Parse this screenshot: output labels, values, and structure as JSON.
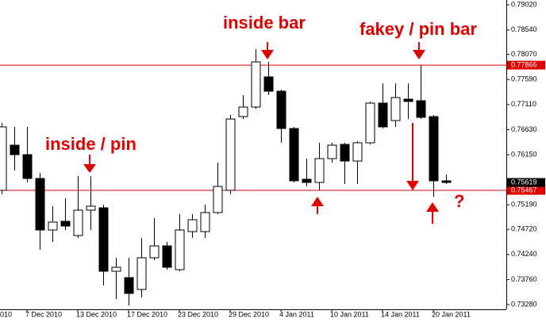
{
  "chart_data": {
    "type": "candlestick",
    "categories": [
      null,
      null,
      "7 Dec 2010",
      null,
      null,
      null,
      "13 Dec 2010",
      null,
      null,
      null,
      "17 Dec 2010",
      null,
      null,
      null,
      "23 Dec 2010",
      null,
      null,
      null,
      "29 Dec 2010",
      null,
      null,
      null,
      "4 Jan 2011",
      null,
      null,
      null,
      "10 Jan 2011",
      null,
      null,
      null,
      "14 Jan 2011",
      null,
      null,
      null,
      "20 Jan 2011",
      null
    ],
    "x_cut_label": "010",
    "open": [
      0.75467,
      0.76333,
      0.76151,
      0.75695,
      0.74708,
      0.74875,
      0.74602,
      0.75088,
      0.75133,
      0.73918,
      0.73796,
      0.73569,
      0.74176,
      0.74404,
      0.73948,
      0.74677,
      0.74677,
      0.75042,
      0.75467,
      0.7688,
      0.77062,
      0.7764,
      0.77366,
      0.76652,
      0.7568,
      0.75619,
      0.76075,
      0.76348,
      0.76029,
      0.76379,
      0.77138,
      0.76804,
      0.77214,
      0.77184,
      0.7688,
      0.7565
    ],
    "high": [
      0.76759,
      0.76683,
      0.76683,
      0.75802,
      0.75164,
      0.75315,
      0.75741,
      0.75741,
      0.75194,
      0.74176,
      0.74176,
      0.74556,
      0.74936,
      0.7448,
      0.75012,
      0.75012,
      0.75194,
      0.75999,
      0.7691,
      0.7729,
      0.78171,
      0.77928,
      0.77396,
      0.76683,
      0.76075,
      0.76379,
      0.76379,
      0.76379,
      0.76409,
      0.77169,
      0.77518,
      0.77518,
      0.77518,
      0.77866,
      0.7691,
      0.75771
    ],
    "low": [
      0.75391,
      0.75847,
      0.75619,
      0.74328,
      0.7448,
      0.74708,
      0.74556,
      0.74708,
      0.73645,
      0.73386,
      0.73265,
      0.73417,
      0.74131,
      0.73948,
      0.73918,
      0.74556,
      0.74556,
      0.75012,
      0.75391,
      0.76834,
      0.77032,
      0.7729,
      0.76379,
      0.75619,
      0.75543,
      0.75467,
      0.75999,
      0.75589,
      0.75589,
      0.76348,
      0.76652,
      0.76683,
      0.76834,
      0.76834,
      0.75346,
      0.75589
    ],
    "close": [
      0.76683,
      0.76151,
      0.75695,
      0.74708,
      0.7486,
      0.74784,
      0.75088,
      0.75164,
      0.73918,
      0.73994,
      0.73493,
      0.74176,
      0.74404,
      0.73994,
      0.74708,
      0.74905,
      0.75042,
      0.75543,
      0.76834,
      0.77062,
      0.77928,
      0.77366,
      0.76652,
      0.7565,
      0.75619,
      0.76075,
      0.76333,
      0.76029,
      0.76379,
      0.77138,
      0.76683,
      0.77245,
      0.77169,
      0.76865,
      0.7565,
      0.75619
    ],
    "up_color": "#ffffff",
    "down_color": "#000000",
    "ylim": [
      0.73189,
      0.79113
    ],
    "yticks": [
      {
        "value": 0.7902,
        "label": "0.79020"
      },
      {
        "value": 0.7854,
        "label": "0.78540"
      },
      {
        "value": 0.7807,
        "label": "0.78070"
      },
      {
        "value": 0.7759,
        "label": "0.77590"
      },
      {
        "value": 0.7711,
        "label": "0.77110"
      },
      {
        "value": 0.7663,
        "label": "0.76630"
      },
      {
        "value": 0.7615,
        "label": "0.76150"
      },
      {
        "value": 0.7519,
        "label": "0.75190"
      },
      {
        "value": 0.7472,
        "label": "0.74720"
      },
      {
        "value": 0.7424,
        "label": "0.74240"
      },
      {
        "value": 0.7376,
        "label": "0.73760"
      },
      {
        "value": 0.7328,
        "label": "0.73280"
      }
    ],
    "hlines": [
      {
        "value": 0.77866,
        "label": "0.77866",
        "color": "#e00000"
      },
      {
        "value": 0.75467,
        "label": "0.75467",
        "color": "#e00000"
      }
    ],
    "last_price": {
      "value": 0.75619,
      "label": "0.75619"
    },
    "annotations": [
      "inside / pin",
      "inside bar",
      "fakey / pin bar",
      "?"
    ],
    "annotation_color": "#e00000"
  }
}
